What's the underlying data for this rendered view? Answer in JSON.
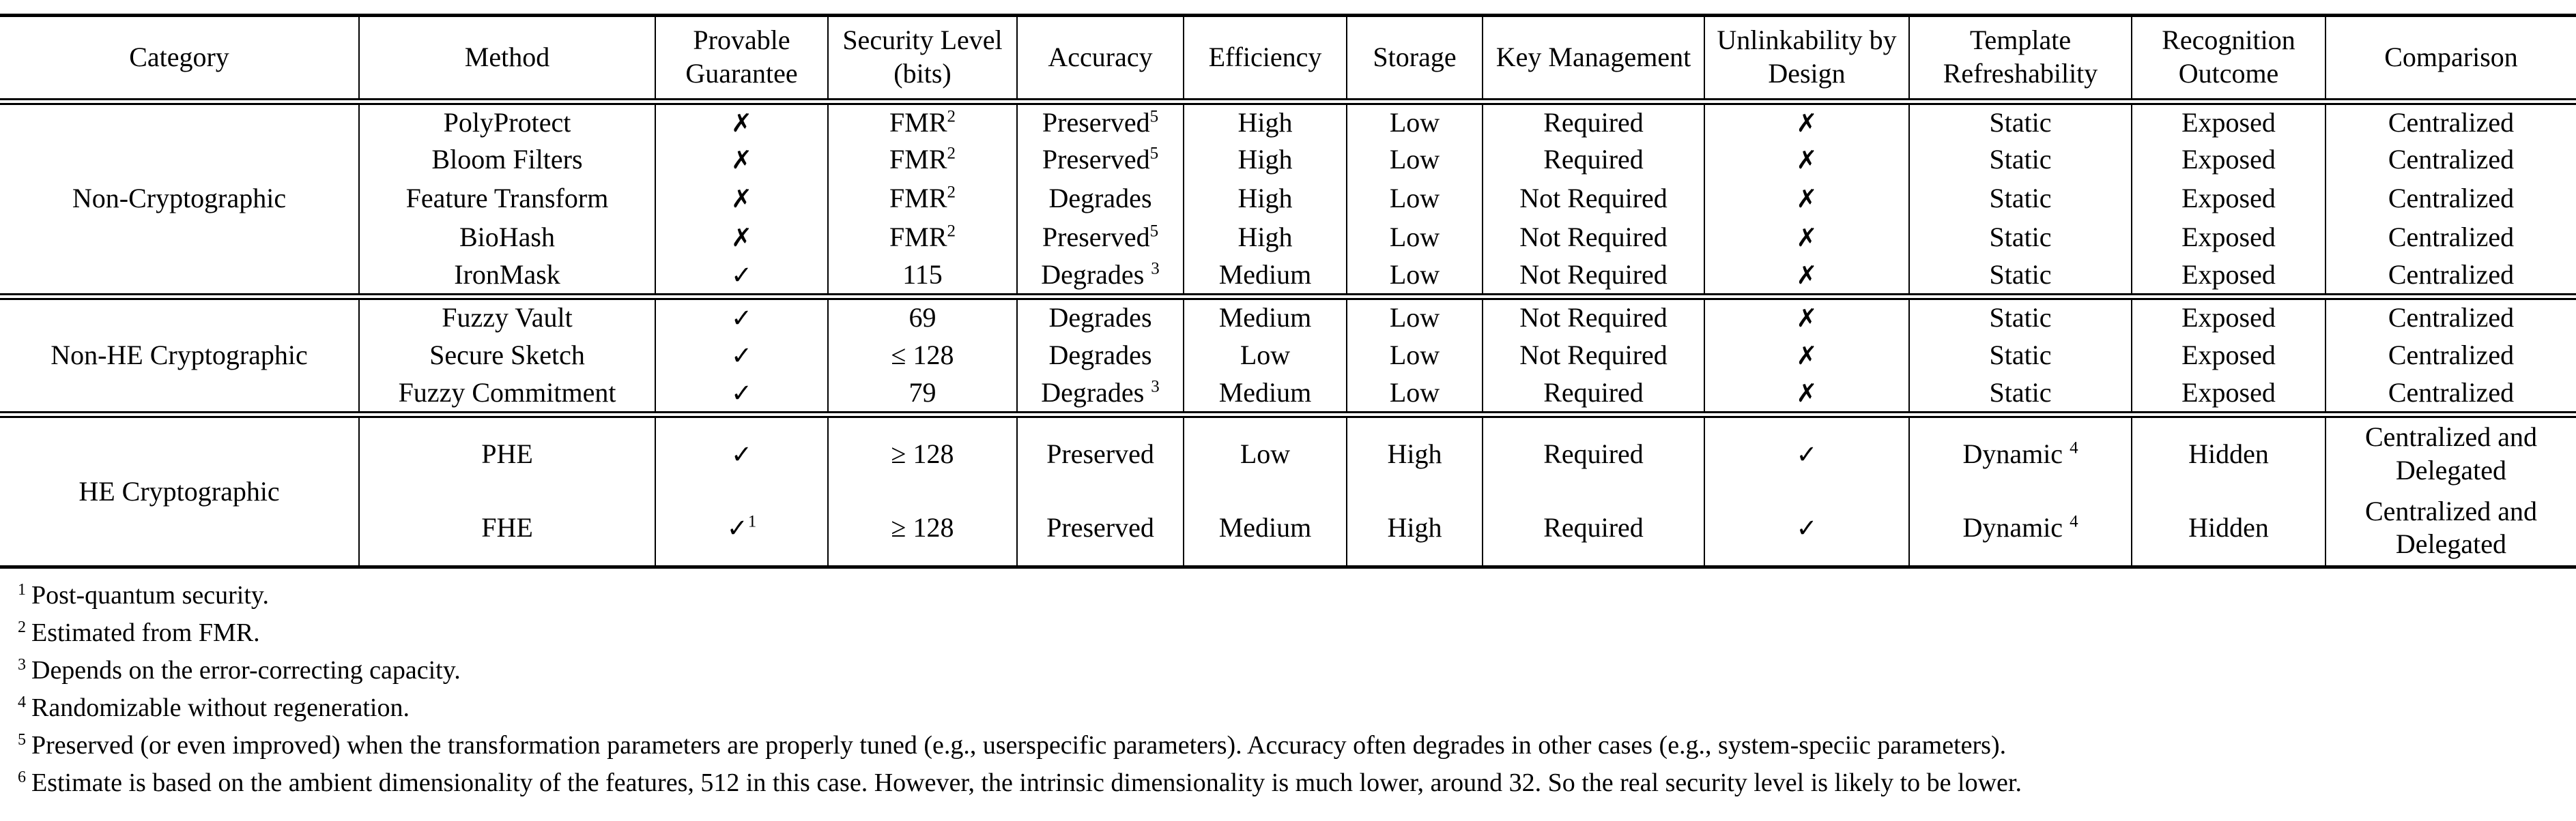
{
  "table": {
    "columns": [
      "Category",
      "Method",
      "Provable Guarantee",
      "Security Level (bits)",
      "Accuracy",
      "Efficiency",
      "Storage",
      "Key Management",
      "Unlinkability by Design",
      "Template Refreshability",
      "Recognition Outcome",
      "Comparison"
    ],
    "groups": [
      {
        "category": "Non-Cryptographic",
        "rows": [
          {
            "method": "PolyProtect",
            "cells": [
              "✗",
              {
                "t": "FMR",
                "s": "2"
              },
              {
                "t": "Preserved",
                "s": "5"
              },
              "High",
              "Low",
              "Required",
              "✗",
              "Static",
              "Exposed",
              "Centralized"
            ]
          },
          {
            "method": "Bloom Filters",
            "cells": [
              "✗",
              {
                "t": "FMR",
                "s": "2"
              },
              {
                "t": "Preserved",
                "s": "5"
              },
              "High",
              "Low",
              "Required",
              "✗",
              "Static",
              "Exposed",
              "Centralized"
            ]
          },
          {
            "method": "Feature Transform",
            "cells": [
              "✗",
              {
                "t": "FMR",
                "s": "2"
              },
              "Degrades",
              "High",
              "Low",
              "Not Required",
              "✗",
              "Static",
              "Exposed",
              "Centralized"
            ]
          },
          {
            "method": "BioHash",
            "cells": [
              "✗",
              {
                "t": "FMR",
                "s": "2"
              },
              {
                "t": "Preserved",
                "s": "5"
              },
              "High",
              "Low",
              "Not Required",
              "✗",
              "Static",
              "Exposed",
              "Centralized"
            ]
          },
          {
            "method": "IronMask",
            "cells": [
              "✓",
              "115",
              {
                "t": "Degrades ",
                "s": "3"
              },
              "Medium",
              "Low",
              "Not Required",
              "✗",
              "Static",
              "Exposed",
              "Centralized"
            ]
          }
        ]
      },
      {
        "category": "Non-HE Cryptographic",
        "rows": [
          {
            "method": "Fuzzy Vault",
            "cells": [
              "✓",
              "69",
              "Degrades",
              "Medium",
              "Low",
              "Not Required",
              "✗",
              "Static",
              "Exposed",
              "Centralized"
            ]
          },
          {
            "method": "Secure Sketch",
            "cells": [
              "✓",
              "≤ 128",
              "Degrades",
              "Low",
              "Low",
              "Not Required",
              "✗",
              "Static",
              "Exposed",
              "Centralized"
            ]
          },
          {
            "method": "Fuzzy Commitment",
            "cells": [
              "✓",
              "79",
              {
                "t": "Degrades ",
                "s": "3"
              },
              "Medium",
              "Low",
              "Required",
              "✗",
              "Static",
              "Exposed",
              "Centralized"
            ]
          }
        ]
      },
      {
        "category": "HE Cryptographic",
        "rows": [
          {
            "method": "PHE",
            "cells": [
              "✓",
              "≥ 128",
              "Preserved",
              "Low",
              "High",
              "Required",
              "✓",
              {
                "t": "Dynamic ",
                "s": "4"
              },
              "Hidden",
              "Centralized and Delegated"
            ]
          },
          {
            "method": "FHE",
            "cells": [
              {
                "t": "✓",
                "s": "1"
              },
              "≥ 128",
              "Preserved",
              "Medium",
              "High",
              "Required",
              "✓",
              {
                "t": "Dynamic ",
                "s": "4"
              },
              "Hidden",
              "Centralized and Delegated"
            ]
          }
        ]
      }
    ]
  },
  "footnotes": [
    {
      "marker": "1",
      "text": "Post-quantum security."
    },
    {
      "marker": "2",
      "text": "Estimated from FMR."
    },
    {
      "marker": "3",
      "text": "Depends on the error-correcting capacity."
    },
    {
      "marker": "4",
      "text": "Randomizable without regeneration."
    },
    {
      "marker": "5",
      "text": "Preserved (or even improved) when the transformation parameters are properly tuned (e.g., userspecific parameters). Accuracy often degrades in other cases (e.g., system-speciic parameters)."
    },
    {
      "marker": "6",
      "text": "Estimate is based on the ambient dimensionality of the features, 512 in this case. However, the intrinsic dimensionality is much lower, around 32. So the real security level is likely to be lower."
    }
  ]
}
